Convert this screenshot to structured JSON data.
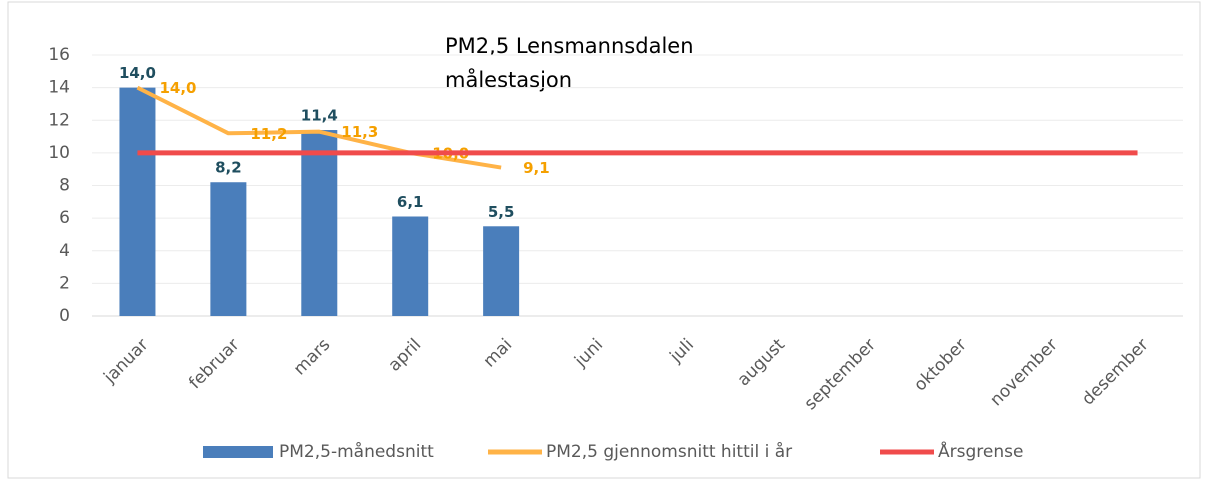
{
  "chart_data": {
    "type": "combo",
    "title": [
      "PM2,5 Lensmannsdalen",
      "målestasjon"
    ],
    "categories": [
      "januar",
      "februar",
      "mars",
      "april",
      "mai",
      "juni",
      "juli",
      "august",
      "september",
      "oktober",
      "november",
      "desember"
    ],
    "series": [
      {
        "name": "PM2,5-månedsnitt",
        "type": "bar",
        "color": "#4a7ebb",
        "label_color": "#1f4e5f",
        "values": [
          14.0,
          8.2,
          11.4,
          6.1,
          5.5,
          null,
          null,
          null,
          null,
          null,
          null,
          null
        ],
        "value_labels": [
          "14,0",
          "8,2",
          "11,4",
          "6,1",
          "5,5",
          null,
          null,
          null,
          null,
          null,
          null,
          null
        ]
      },
      {
        "name": "PM2,5 gjennomsnitt hittil i år",
        "type": "line",
        "color": "#ffb347",
        "label_color": "#f5a000",
        "values": [
          14.0,
          11.2,
          11.3,
          10.0,
          9.1,
          null,
          null,
          null,
          null,
          null,
          null,
          null
        ],
        "value_labels": [
          "14,0",
          "11,2",
          "11,3",
          "10,0",
          "9,1",
          null,
          null,
          null,
          null,
          null,
          null,
          null
        ]
      },
      {
        "name": "Årsgrense",
        "type": "line",
        "color": "#f04b4b",
        "values": [
          10,
          10,
          10,
          10,
          10,
          10,
          10,
          10,
          10,
          10,
          10,
          10
        ]
      }
    ],
    "ylim": [
      0,
      16
    ],
    "yticks": [
      0,
      2,
      4,
      6,
      8,
      10,
      12,
      14,
      16
    ],
    "grid": true
  }
}
